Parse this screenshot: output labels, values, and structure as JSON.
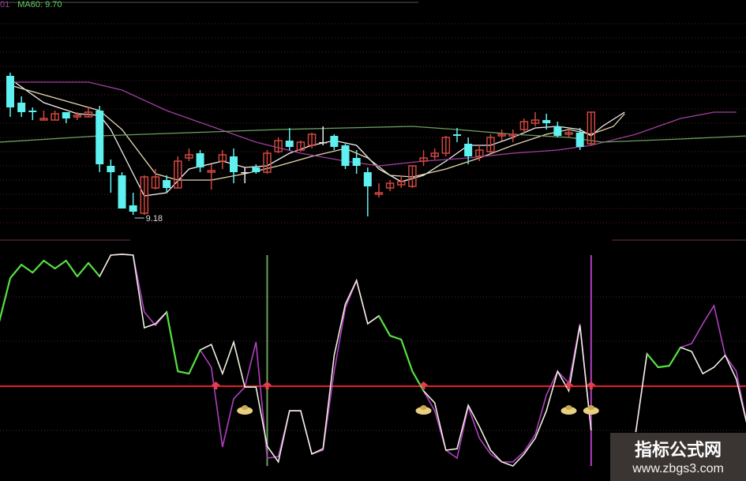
{
  "header": {
    "label_prefix": "01",
    "ma60_label": "MA60: 9.70"
  },
  "colors": {
    "up": "#d0473f",
    "down": "#5ff0f0",
    "doji": "#e8e8e8",
    "ma5": "#f0f0f0",
    "ma10": "#e6d9b0",
    "ma30": "#a040a0",
    "ma60": "#6aa060",
    "grid": "#5a2020",
    "signal_line": "#e0202a",
    "osc_rise": "#55e040",
    "osc_main": "#f0f0e0",
    "osc_signal": "#b040c0",
    "coin": "#e8d080"
  },
  "chart_data": [
    {
      "type": "candlestick",
      "title": "",
      "low_annotation": {
        "index": 11,
        "price": 9.18,
        "label": "9.18"
      },
      "candles": [
        {
          "o": 10.06,
          "h": 10.08,
          "l": 9.8,
          "c": 9.86
        },
        {
          "o": 9.89,
          "h": 9.93,
          "l": 9.8,
          "c": 9.83
        },
        {
          "o": 9.84,
          "h": 9.86,
          "l": 9.78,
          "c": 9.83
        },
        {
          "o": 9.78,
          "h": 9.84,
          "l": 9.78,
          "c": 9.79
        },
        {
          "o": 9.78,
          "h": 9.84,
          "l": 9.78,
          "c": 9.82
        },
        {
          "o": 9.83,
          "h": 9.83,
          "l": 9.76,
          "c": 9.79
        },
        {
          "o": 9.8,
          "h": 9.83,
          "l": 9.78,
          "c": 9.81
        },
        {
          "o": 9.8,
          "h": 9.86,
          "l": 9.8,
          "c": 9.83
        },
        {
          "o": 9.84,
          "h": 9.87,
          "l": 9.45,
          "c": 9.5
        },
        {
          "o": 9.49,
          "h": 9.53,
          "l": 9.32,
          "c": 9.45
        },
        {
          "o": 9.43,
          "h": 9.45,
          "l": 9.22,
          "c": 9.22
        },
        {
          "o": 9.24,
          "h": 9.32,
          "l": 9.18,
          "c": 9.2
        },
        {
          "o": 9.19,
          "h": 9.43,
          "l": 9.18,
          "c": 9.42
        },
        {
          "o": 9.35,
          "h": 9.47,
          "l": 9.34,
          "c": 9.42
        },
        {
          "o": 9.4,
          "h": 9.43,
          "l": 9.32,
          "c": 9.35
        },
        {
          "o": 9.35,
          "h": 9.55,
          "l": 9.35,
          "c": 9.52
        },
        {
          "o": 9.54,
          "h": 9.6,
          "l": 9.52,
          "c": 9.56
        },
        {
          "o": 9.57,
          "h": 9.59,
          "l": 9.45,
          "c": 9.48
        },
        {
          "o": 9.45,
          "h": 9.5,
          "l": 9.34,
          "c": 9.46
        },
        {
          "o": 9.52,
          "h": 9.59,
          "l": 9.47,
          "c": 9.56
        },
        {
          "o": 9.55,
          "h": 9.6,
          "l": 9.38,
          "c": 9.45
        },
        {
          "o": 9.45,
          "h": 9.48,
          "l": 9.38,
          "c": 9.45
        },
        {
          "o": 9.48,
          "h": 9.5,
          "l": 9.44,
          "c": 9.45
        },
        {
          "o": 9.45,
          "h": 9.59,
          "l": 9.44,
          "c": 9.57
        },
        {
          "o": 9.58,
          "h": 9.67,
          "l": 9.57,
          "c": 9.65
        },
        {
          "o": 9.65,
          "h": 9.73,
          "l": 9.59,
          "c": 9.61
        },
        {
          "o": 9.59,
          "h": 9.65,
          "l": 9.58,
          "c": 9.64
        },
        {
          "o": 9.62,
          "h": 9.7,
          "l": 9.6,
          "c": 9.69
        },
        {
          "o": 9.64,
          "h": 9.74,
          "l": 9.62,
          "c": 9.64
        },
        {
          "o": 9.68,
          "h": 9.69,
          "l": 9.59,
          "c": 9.61
        },
        {
          "o": 9.62,
          "h": 9.63,
          "l": 9.47,
          "c": 9.49
        },
        {
          "o": 9.54,
          "h": 9.59,
          "l": 9.44,
          "c": 9.49
        },
        {
          "o": 9.45,
          "h": 9.48,
          "l": 9.17,
          "c": 9.36
        },
        {
          "o": 9.31,
          "h": 9.38,
          "l": 9.29,
          "c": 9.32
        },
        {
          "o": 9.35,
          "h": 9.4,
          "l": 9.33,
          "c": 9.38
        },
        {
          "o": 9.37,
          "h": 9.43,
          "l": 9.35,
          "c": 9.39
        },
        {
          "o": 9.36,
          "h": 9.49,
          "l": 9.35,
          "c": 9.49
        },
        {
          "o": 9.52,
          "h": 9.59,
          "l": 9.49,
          "c": 9.54
        },
        {
          "o": 9.55,
          "h": 9.6,
          "l": 9.53,
          "c": 9.57
        },
        {
          "o": 9.57,
          "h": 9.68,
          "l": 9.55,
          "c": 9.67
        },
        {
          "o": 9.69,
          "h": 9.73,
          "l": 9.64,
          "c": 9.68
        },
        {
          "o": 9.63,
          "h": 9.67,
          "l": 9.5,
          "c": 9.55
        },
        {
          "o": 9.55,
          "h": 9.62,
          "l": 9.52,
          "c": 9.59
        },
        {
          "o": 9.58,
          "h": 9.69,
          "l": 9.57,
          "c": 9.67
        },
        {
          "o": 9.68,
          "h": 9.72,
          "l": 9.65,
          "c": 9.69
        },
        {
          "o": 9.68,
          "h": 9.72,
          "l": 9.64,
          "c": 9.69
        },
        {
          "o": 9.72,
          "h": 9.79,
          "l": 9.7,
          "c": 9.77
        },
        {
          "o": 9.76,
          "h": 9.83,
          "l": 9.74,
          "c": 9.78
        },
        {
          "o": 9.78,
          "h": 9.82,
          "l": 9.72,
          "c": 9.76
        },
        {
          "o": 9.74,
          "h": 9.77,
          "l": 9.67,
          "c": 9.68
        },
        {
          "o": 9.69,
          "h": 9.72,
          "l": 9.67,
          "c": 9.7
        },
        {
          "o": 9.7,
          "h": 9.73,
          "l": 9.59,
          "c": 9.61
        },
        {
          "o": 9.63,
          "h": 9.83,
          "l": 9.62,
          "c": 9.83
        }
      ],
      "moving_averages": [
        {
          "key": "ma5",
          "points": [
            [
              0,
              10.04
            ],
            [
              3,
              9.89
            ],
            [
              6,
              9.82
            ],
            [
              8,
              9.81
            ],
            [
              9,
              9.72
            ],
            [
              11,
              9.44
            ],
            [
              12,
              9.3
            ],
            [
              14,
              9.32
            ],
            [
              16,
              9.47
            ],
            [
              19,
              9.52
            ],
            [
              21,
              9.48
            ],
            [
              23,
              9.49
            ],
            [
              25,
              9.57
            ],
            [
              27,
              9.62
            ],
            [
              29,
              9.65
            ],
            [
              31,
              9.62
            ],
            [
              33,
              9.47
            ],
            [
              35,
              9.39
            ],
            [
              37,
              9.43
            ],
            [
              39,
              9.52
            ],
            [
              41,
              9.62
            ],
            [
              43,
              9.62
            ],
            [
              45,
              9.67
            ],
            [
              47,
              9.73
            ],
            [
              49,
              9.74
            ],
            [
              51,
              9.72
            ],
            [
              52,
              9.68
            ],
            [
              53,
              9.74
            ],
            [
              55,
              9.83
            ]
          ]
        },
        {
          "key": "ma10",
          "points": [
            [
              0,
              10.0
            ],
            [
              4,
              9.92
            ],
            [
              8,
              9.84
            ],
            [
              10,
              9.72
            ],
            [
              13,
              9.44
            ],
            [
              15,
              9.4
            ],
            [
              18,
              9.4
            ],
            [
              21,
              9.44
            ],
            [
              24,
              9.49
            ],
            [
              27,
              9.55
            ],
            [
              30,
              9.6
            ],
            [
              32,
              9.54
            ],
            [
              34,
              9.43
            ],
            [
              36,
              9.42
            ],
            [
              39,
              9.47
            ],
            [
              42,
              9.54
            ],
            [
              45,
              9.62
            ],
            [
              48,
              9.69
            ],
            [
              50,
              9.72
            ],
            [
              52,
              9.69
            ],
            [
              54,
              9.74
            ],
            [
              55,
              9.82
            ]
          ]
        },
        {
          "key": "ma30",
          "points": [
            [
              0,
              10.02
            ],
            [
              7,
              10.02
            ],
            [
              10,
              9.97
            ],
            [
              14,
              9.84
            ],
            [
              18,
              9.74
            ],
            [
              22,
              9.64
            ],
            [
              26,
              9.57
            ],
            [
              30,
              9.52
            ],
            [
              33,
              9.49
            ],
            [
              37,
              9.52
            ],
            [
              41,
              9.54
            ],
            [
              45,
              9.57
            ],
            [
              49,
              9.59
            ],
            [
              52,
              9.62
            ],
            [
              56,
              9.69
            ],
            [
              60,
              9.79
            ],
            [
              63,
              9.83
            ],
            [
              65,
              9.83
            ]
          ]
        },
        {
          "key": "ma60",
          "name": "MA60",
          "points": [
            [
              -1,
              9.64
            ],
            [
              8,
              9.68
            ],
            [
              16,
              9.7
            ],
            [
              24,
              9.72
            ],
            [
              30,
              9.73
            ],
            [
              36,
              9.74
            ],
            [
              40,
              9.72
            ],
            [
              45,
              9.69
            ],
            [
              50,
              9.67
            ],
            [
              53,
              9.64
            ],
            [
              60,
              9.66
            ],
            [
              66,
              9.68
            ]
          ]
        }
      ]
    },
    {
      "type": "line",
      "title": "",
      "x": [
        -1,
        0,
        1,
        2,
        3,
        4,
        5,
        6,
        7,
        8,
        9,
        10,
        11,
        12,
        13,
        14,
        15,
        16,
        17,
        18,
        19,
        20,
        21,
        22,
        23,
        24,
        25,
        26,
        27,
        28,
        29,
        30,
        31,
        32,
        33,
        34,
        35,
        36,
        37,
        38,
        39,
        40,
        41,
        42,
        43,
        44,
        45,
        46,
        47,
        48,
        49,
        50,
        51,
        52,
        56,
        57,
        58,
        59,
        60,
        61,
        62,
        63,
        64,
        65,
        66
      ],
      "series": [
        {
          "key": "main",
          "values": [
            67.4,
            88.1,
            94.4,
            90.7,
            96.3,
            92.6,
            96.3,
            88.9,
            95.2,
            88.9,
            98.9,
            99.3,
            98.9,
            64.8,
            66.7,
            72.2,
            44.4,
            43.3,
            54.4,
            57.0,
            43.3,
            58.1,
            37.0,
            37.0,
            9.3,
            1.9,
            25.9,
            25.9,
            5.6,
            8.1,
            51.9,
            75.9,
            87.0,
            66.7,
            70.4,
            61.1,
            59.3,
            44.4,
            35.2,
            29.6,
            7.4,
            8.1,
            28.5,
            18.5,
            7.4,
            1.9,
            0,
            5.6,
            13.0,
            25.9,
            44.4,
            35.2,
            65.9,
            16.7,
            15.9,
            52.6,
            46.3,
            47.0,
            55.6,
            53.7,
            43.3,
            46.3,
            51.9,
            40.7,
            18.5
          ]
        },
        {
          "key": "signal",
          "values": [
            67.4,
            88.1,
            94.4,
            90.7,
            96.3,
            92.6,
            96.3,
            88.9,
            95.2,
            88.9,
            98.9,
            99.3,
            98.9,
            72.2,
            65.9,
            72.2,
            44.4,
            43.3,
            54.4,
            46.3,
            8.9,
            31.5,
            37.0,
            58.1,
            3.7,
            4.4,
            25.9,
            25.9,
            5.6,
            7.4,
            44.4,
            74.1,
            87.0,
            66.7,
            70.4,
            61.1,
            59.3,
            44.4,
            35.2,
            25.9,
            7.4,
            3.7,
            27.8,
            13.0,
            5.6,
            1.9,
            1.9,
            6.7,
            14.8,
            33.3,
            44.4,
            38.9,
            66.7,
            16.7,
            15.9,
            52.6,
            46.3,
            47.0,
            55.6,
            57.4,
            66.7,
            75.2,
            51.9,
            44.4,
            18.5
          ]
        }
      ],
      "reference_level": 37.4,
      "vertical_markers": [
        {
          "index": 23,
          "color": "#6aa060"
        },
        {
          "index": 52,
          "color": "#b040c0"
        }
      ],
      "arrow_signals": [
        18.4,
        23,
        37,
        50,
        52
      ],
      "coin_signals": [
        21,
        37,
        50,
        52
      ],
      "ylim": [
        0,
        100
      ],
      "grid": true
    }
  ],
  "watermark": {
    "title": "指标公式网",
    "url": "www.zbgs3.com"
  }
}
